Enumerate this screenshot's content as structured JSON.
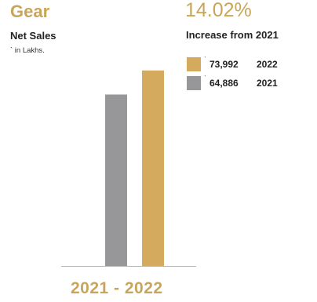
{
  "title": "Gear",
  "subtitle": "Net Sales",
  "unit_note": "` in Lakhs.",
  "headline": {
    "value": "14.02%",
    "caption": "Increase from 2021"
  },
  "legend": [
    {
      "tick": "`",
      "value": "73,992",
      "year": "2022",
      "color": "#d4aa5e"
    },
    {
      "tick": "`",
      "value": "64,886",
      "year": "2021",
      "color": "#97979a"
    }
  ],
  "period_label": "2021 - 2022",
  "chart_data": {
    "type": "bar",
    "categories": [
      "2021",
      "2022"
    ],
    "values": [
      64886,
      73992
    ],
    "colors": [
      "#97979a",
      "#d4aa5e"
    ],
    "title": "Gear",
    "ylabel": "Net Sales (` in Lakhs)",
    "ylim": [
      0,
      98000
    ],
    "grid": false
  }
}
